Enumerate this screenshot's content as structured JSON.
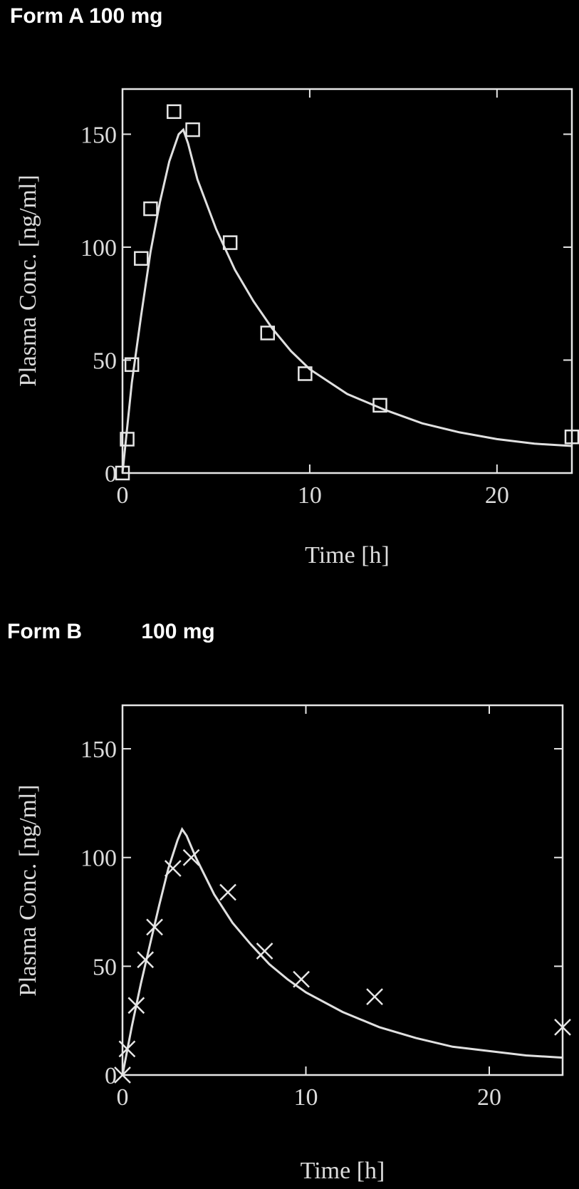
{
  "chart_data": [
    {
      "type": "scatter",
      "title": "Form A 100 mg",
      "xlabel": "Time [h]",
      "ylabel": "Plasma Conc. [ng/ml]",
      "xlim": [
        0,
        24
      ],
      "ylim": [
        0,
        170
      ],
      "xticks": [
        0,
        10,
        20
      ],
      "yticks": [
        0,
        50,
        100,
        150
      ],
      "grid": false,
      "marker": "square",
      "series": [
        {
          "kind": "observed",
          "x": [
            0,
            0.25,
            0.5,
            1,
            1.5,
            2.75,
            3.75,
            5.75,
            7.75,
            9.75,
            13.75,
            24
          ],
          "y": [
            0,
            15,
            48,
            95,
            117,
            160,
            152,
            102,
            62,
            44,
            30,
            16
          ]
        },
        {
          "kind": "fitted",
          "x": [
            0,
            0.5,
            1,
            1.5,
            2,
            2.5,
            3,
            3.25,
            3.5,
            4,
            5,
            6,
            7,
            8,
            9,
            10,
            12,
            14,
            16,
            18,
            20,
            22,
            24
          ],
          "y": [
            0,
            40,
            70,
            98,
            120,
            138,
            150,
            152,
            146,
            130,
            108,
            90,
            76,
            64,
            54,
            46,
            35,
            28,
            22,
            18,
            15,
            13,
            12
          ]
        }
      ]
    },
    {
      "type": "scatter",
      "title": "Form B          100 mg",
      "xlabel": "Time [h]",
      "ylabel": "Plasma Conc. [ng/ml]",
      "xlim": [
        0,
        24
      ],
      "ylim": [
        0,
        170
      ],
      "xticks": [
        0,
        10,
        20
      ],
      "yticks": [
        0,
        50,
        100,
        150
      ],
      "grid": false,
      "marker": "x",
      "series": [
        {
          "kind": "observed",
          "x": [
            0,
            0.25,
            0.75,
            1.25,
            1.75,
            2.75,
            3.75,
            5.75,
            7.75,
            9.75,
            13.75,
            24
          ],
          "y": [
            0,
            12,
            32,
            53,
            68,
            95,
            100,
            84,
            57,
            44,
            36,
            22
          ]
        },
        {
          "kind": "fitted",
          "x": [
            0,
            0.5,
            1,
            1.5,
            2,
            2.5,
            3,
            3.25,
            3.5,
            4,
            5,
            6,
            7,
            8,
            9,
            10,
            12,
            14,
            16,
            18,
            20,
            22,
            24
          ],
          "y": [
            0,
            22,
            42,
            60,
            78,
            95,
            108,
            113,
            110,
            100,
            83,
            70,
            60,
            51,
            44,
            38,
            29,
            22,
            17,
            13,
            11,
            9,
            8
          ]
        }
      ]
    }
  ]
}
